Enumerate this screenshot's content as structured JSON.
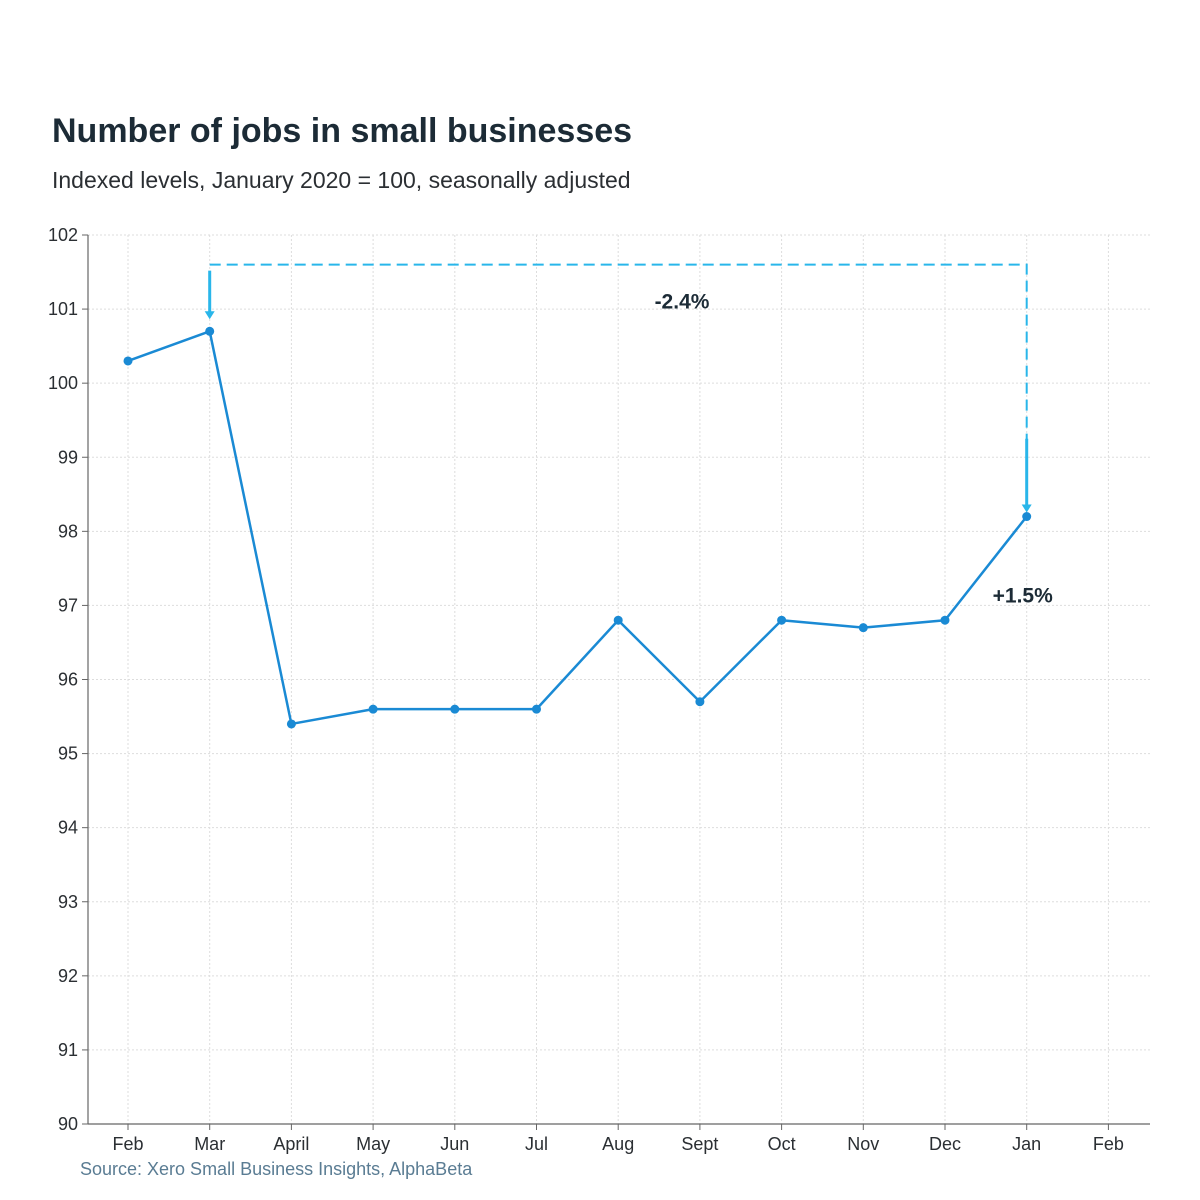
{
  "chart_data": {
    "type": "line",
    "title": "Number of jobs in small businesses",
    "subtitle": "Indexed levels, January 2020 = 100, seasonally adjusted",
    "xlabel": "",
    "ylabel": "",
    "categories": [
      "Feb",
      "Mar",
      "April",
      "May",
      "Jun",
      "Jul",
      "Aug",
      "Sept",
      "Oct",
      "Nov",
      "Dec",
      "Jan",
      "Feb"
    ],
    "series": [
      {
        "values": [
          100.3,
          100.7,
          95.4,
          95.6,
          95.6,
          95.6,
          96.8,
          95.7,
          96.8,
          96.7,
          96.8,
          98.2,
          null
        ]
      }
    ],
    "ylim": [
      90,
      102
    ],
    "yticks": [
      90,
      91,
      92,
      93,
      94,
      95,
      96,
      97,
      98,
      99,
      100,
      101,
      102
    ],
    "grid": true,
    "legend": "none",
    "annotations": [
      {
        "label": "-2.4%",
        "from_category_index": 1,
        "to_category_index": 11,
        "style": "dashed bracket"
      },
      {
        "label": "+1.5%",
        "category_index": 11,
        "style": "arrow"
      }
    ],
    "source": "Source: Xero Small Business Insights, AlphaBeta",
    "colors": {
      "line": "#1a8ad4",
      "annotation": "#29b6ea",
      "grid": "#dddddd",
      "axis": "#666666"
    }
  }
}
